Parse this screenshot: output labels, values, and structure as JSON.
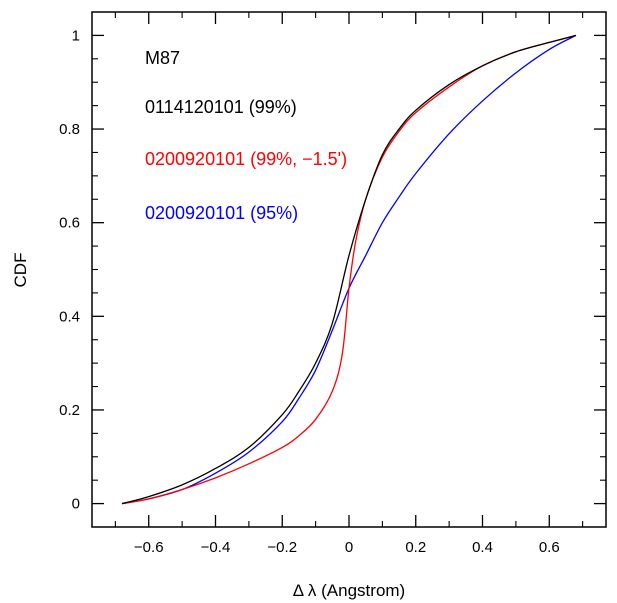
{
  "chart_data": {
    "type": "line",
    "title": "",
    "xlabel": "Δ λ (Angstrom)",
    "ylabel": "CDF",
    "xlim": [
      -0.77,
      0.77
    ],
    "ylim": [
      -0.05,
      1.05
    ],
    "grid": false,
    "legend_position": "top-left",
    "annotation": "M87",
    "x_ticks": [
      -0.6,
      -0.4,
      -0.2,
      0,
      0.2,
      0.4,
      0.6
    ],
    "x_tick_labels": [
      "−0.6",
      "−0.4",
      "−0.2",
      "0",
      "0.2",
      "0.4",
      "0.6"
    ],
    "y_ticks": [
      0,
      0.2,
      0.4,
      0.6,
      0.8,
      1
    ],
    "y_tick_labels": [
      "0",
      "0.2",
      "0.4",
      "0.6",
      "0.8",
      "1"
    ],
    "series": [
      {
        "name": "0114120101 (99%)",
        "color": "#000000",
        "points": [
          [
            -0.68,
            0.0
          ],
          [
            -0.6,
            0.015
          ],
          [
            -0.5,
            0.04
          ],
          [
            -0.4,
            0.075
          ],
          [
            -0.3,
            0.12
          ],
          [
            -0.2,
            0.19
          ],
          [
            -0.15,
            0.24
          ],
          [
            -0.1,
            0.3
          ],
          [
            -0.05,
            0.385
          ],
          [
            0.0,
            0.53
          ],
          [
            0.05,
            0.65
          ],
          [
            0.1,
            0.745
          ],
          [
            0.15,
            0.8
          ],
          [
            0.2,
            0.84
          ],
          [
            0.3,
            0.895
          ],
          [
            0.4,
            0.935
          ],
          [
            0.5,
            0.965
          ],
          [
            0.6,
            0.985
          ],
          [
            0.68,
            1.0
          ]
        ]
      },
      {
        "name": "0200920101 (99%, −1.5')",
        "color": "#ff0000",
        "points": [
          [
            -0.68,
            0.0
          ],
          [
            -0.6,
            0.01
          ],
          [
            -0.5,
            0.03
          ],
          [
            -0.4,
            0.055
          ],
          [
            -0.3,
            0.085
          ],
          [
            -0.2,
            0.12
          ],
          [
            -0.15,
            0.145
          ],
          [
            -0.1,
            0.18
          ],
          [
            -0.05,
            0.24
          ],
          [
            -0.02,
            0.32
          ],
          [
            0.0,
            0.46
          ],
          [
            0.02,
            0.56
          ],
          [
            0.05,
            0.65
          ],
          [
            0.1,
            0.74
          ],
          [
            0.15,
            0.795
          ],
          [
            0.2,
            0.835
          ],
          [
            0.3,
            0.89
          ],
          [
            0.4,
            0.935
          ],
          [
            0.5,
            0.965
          ],
          [
            0.6,
            0.985
          ],
          [
            0.68,
            1.0
          ]
        ]
      },
      {
        "name": "0200920101 (95%)",
        "color": "#0000ff",
        "points": [
          [
            -0.68,
            0.0
          ],
          [
            -0.6,
            0.01
          ],
          [
            -0.5,
            0.03
          ],
          [
            -0.4,
            0.065
          ],
          [
            -0.3,
            0.11
          ],
          [
            -0.2,
            0.175
          ],
          [
            -0.15,
            0.225
          ],
          [
            -0.1,
            0.285
          ],
          [
            -0.05,
            0.37
          ],
          [
            0.0,
            0.46
          ],
          [
            0.05,
            0.53
          ],
          [
            0.1,
            0.6
          ],
          [
            0.15,
            0.655
          ],
          [
            0.2,
            0.705
          ],
          [
            0.3,
            0.79
          ],
          [
            0.4,
            0.86
          ],
          [
            0.5,
            0.92
          ],
          [
            0.6,
            0.97
          ],
          [
            0.68,
            1.0
          ]
        ]
      }
    ]
  }
}
